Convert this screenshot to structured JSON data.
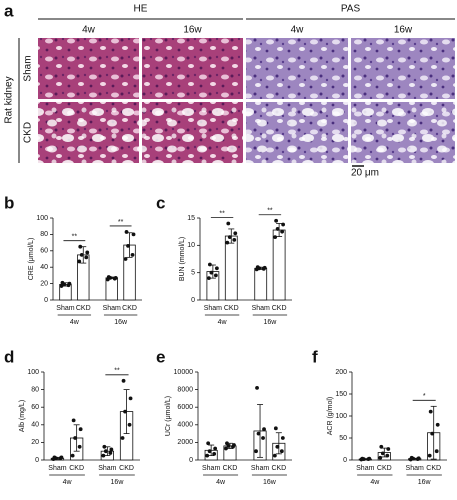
{
  "panel_a": {
    "panel": "a",
    "stains": [
      "HE",
      "PAS"
    ],
    "timepoints": [
      "4w",
      "16w",
      "4w",
      "16w"
    ],
    "side_label": "Rat kidney",
    "rows": [
      "Sham",
      "CKD"
    ],
    "scale_bar": "20 μm"
  },
  "chart_data": [
    {
      "type": "bar",
      "panel": "b",
      "ylabel": "CRE (μmol/L)",
      "categories": [
        "Sham",
        "CKD",
        "Sham",
        "CKD"
      ],
      "groups": [
        "4w",
        "16w"
      ],
      "values": [
        19,
        55,
        27,
        67
      ],
      "errors": [
        2,
        10,
        1,
        15
      ],
      "points": [
        [
          17,
          18,
          19,
          20,
          21
        ],
        [
          47,
          52,
          55,
          58,
          65
        ],
        [
          25,
          26,
          27,
          27,
          28
        ],
        [
          50,
          55,
          66,
          80,
          83
        ]
      ],
      "significance": [
        "**",
        "**"
      ],
      "ylim": [
        0,
        100
      ],
      "yticks": [
        0,
        20,
        40,
        60,
        80,
        100
      ]
    },
    {
      "type": "bar",
      "panel": "c",
      "ylabel": "BUN (mmol/L)",
      "categories": [
        "Sham",
        "CKD",
        "Sham",
        "CKD"
      ],
      "groups": [
        "4w",
        "16w"
      ],
      "values": [
        5.2,
        11.7,
        5.8,
        12.8
      ],
      "errors": [
        1.2,
        1.3,
        0.2,
        1.2
      ],
      "points": [
        [
          4,
          4.5,
          5,
          5.8,
          6.5
        ],
        [
          10.5,
          11,
          11.5,
          12.2,
          14
        ],
        [
          5.6,
          5.7,
          5.8,
          5.9,
          6
        ],
        [
          11.5,
          12.5,
          13,
          13.8,
          14.5
        ]
      ],
      "significance": [
        "**",
        "**"
      ],
      "ylim": [
        0,
        15
      ],
      "yticks": [
        0,
        5,
        10,
        15
      ]
    },
    {
      "type": "bar",
      "panel": "d",
      "ylabel": "Alb (mg/L)",
      "categories": [
        "Sham",
        "CKD",
        "Sham",
        "CKD"
      ],
      "groups": [
        "4w",
        "16w"
      ],
      "values": [
        2,
        25,
        10,
        55
      ],
      "errors": [
        1,
        15,
        5,
        25
      ],
      "points": [
        [
          1,
          2,
          2,
          3,
          3
        ],
        [
          5,
          15,
          25,
          35,
          45
        ],
        [
          5,
          8,
          10,
          12,
          15
        ],
        [
          25,
          40,
          55,
          70,
          90
        ]
      ],
      "significance": [
        null,
        "**"
      ],
      "ylim": [
        0,
        100
      ],
      "yticks": [
        0,
        20,
        40,
        60,
        80,
        100
      ]
    },
    {
      "type": "bar",
      "panel": "e",
      "ylabel": "UCr (μmol/L)",
      "categories": [
        "Sham",
        "CKD",
        "Sham",
        "CKD"
      ],
      "groups": [
        "4w",
        "16w"
      ],
      "values": [
        1100,
        1600,
        3300,
        1900
      ],
      "errors": [
        600,
        300,
        3000,
        1200
      ],
      "points": [
        [
          500,
          700,
          1000,
          1300,
          1900
        ],
        [
          1300,
          1500,
          1600,
          1700,
          1900
        ],
        [
          1000,
          2500,
          3000,
          3500,
          8200
        ],
        [
          500,
          1000,
          1500,
          2500,
          3600
        ]
      ],
      "ylim": [
        0,
        10000
      ],
      "yticks": [
        0,
        2000,
        4000,
        6000,
        8000,
        10000
      ]
    },
    {
      "type": "bar",
      "panel": "f",
      "ylabel": "ACR (g/mol)",
      "categories": [
        "Sham",
        "CKD",
        "Sham",
        "CKD"
      ],
      "groups": [
        "4w",
        "16w"
      ],
      "values": [
        2,
        17,
        3,
        62
      ],
      "errors": [
        1,
        10,
        1,
        60
      ],
      "points": [
        [
          1,
          2,
          2,
          3,
          3
        ],
        [
          5,
          10,
          15,
          25,
          30
        ],
        [
          1,
          2,
          3,
          4,
          5
        ],
        [
          10,
          20,
          60,
          80,
          110
        ]
      ],
      "significance": [
        null,
        "*"
      ],
      "ylim": [
        0,
        200
      ],
      "yticks": [
        0,
        50,
        100,
        150,
        200
      ]
    }
  ]
}
